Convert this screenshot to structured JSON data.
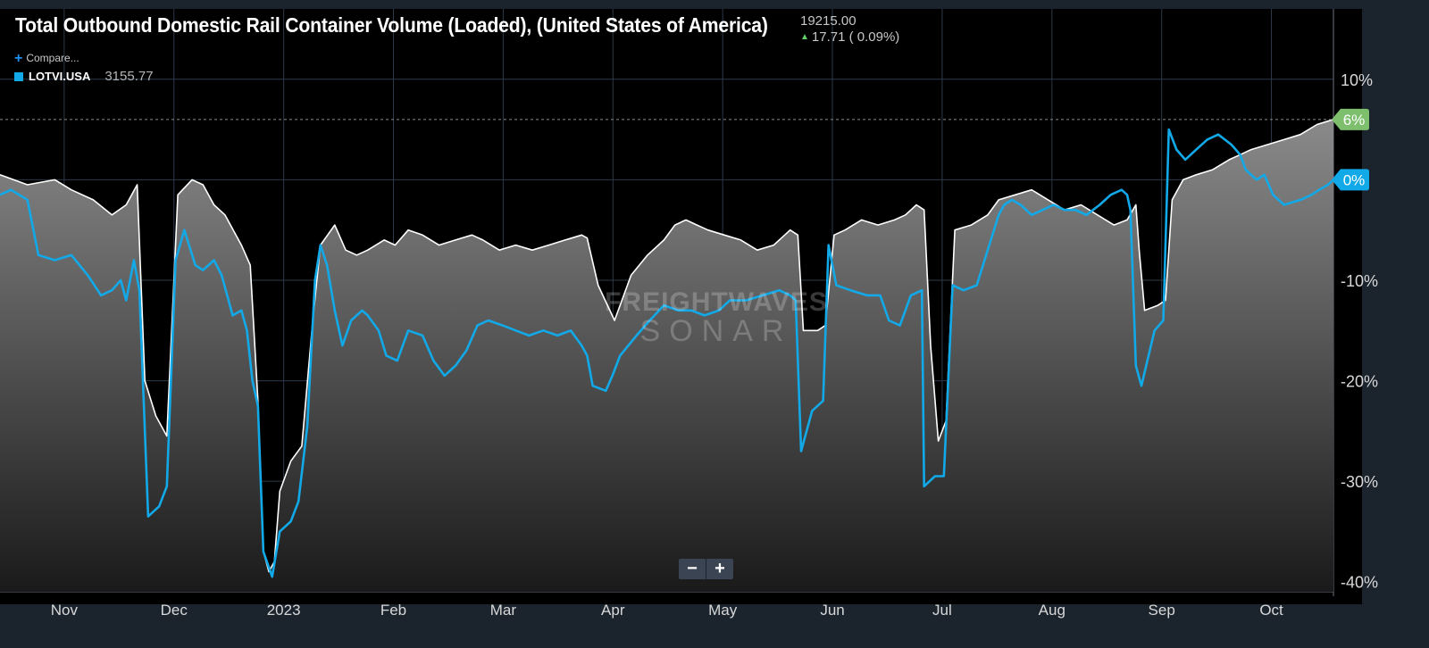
{
  "header": {
    "title": "Total Outbound Domestic Rail Container Volume (Loaded), (United States of America)",
    "last_value": "19215.00",
    "change": "17.71 ( 0.09%)",
    "compare_label": "Compare...",
    "legend_symbol": "LOTVI.USA",
    "legend_value": "3155.77"
  },
  "watermark": {
    "line1": "FREIGHTWAVES",
    "line2": "SONAR"
  },
  "zoom": {
    "minus": "−",
    "plus": "+"
  },
  "colors": {
    "background": "#000000",
    "frame": "#1b232d",
    "primary_series": "#ffffff",
    "compare_series": "#12a9e8",
    "positive_badge": "#7dbf6d",
    "compare_badge": "#12a9e8"
  },
  "chart_data": {
    "type": "line",
    "x_axis": {
      "tick_labels": [
        "Nov",
        "Dec",
        "2023",
        "Feb",
        "Mar",
        "Apr",
        "May",
        "Jun",
        "Jul",
        "Aug",
        "Sep",
        "Oct"
      ],
      "tick_pos": [
        0,
        1,
        2,
        3,
        4,
        5,
        6,
        7,
        8,
        9,
        10,
        11
      ],
      "range": [
        -0.3,
        11.85
      ]
    },
    "y_axis": {
      "unit": "%",
      "position": "right",
      "ticks": [
        10,
        0,
        -10,
        -20,
        -30,
        -40
      ],
      "tick_labels": [
        "10%",
        "-10%",
        "-20%",
        "-30%",
        "-40%"
      ],
      "range": [
        -41,
        17
      ]
    },
    "grid": true,
    "reference_line": 6,
    "series": [
      {
        "label_badge": "6%",
        "style": "line-with-area-fill",
        "color": "#ffffff",
        "points": [
          [
            -0.3,
            0.5
          ],
          [
            -0.05,
            -0.5
          ],
          [
            0.2,
            0.0
          ],
          [
            0.35,
            -1.0
          ],
          [
            0.55,
            -2.0
          ],
          [
            0.72,
            -3.5
          ],
          [
            0.85,
            -2.5
          ],
          [
            0.95,
            -0.5
          ],
          [
            1.02,
            -20.0
          ],
          [
            1.12,
            -23.5
          ],
          [
            1.22,
            -25.5
          ],
          [
            1.32,
            -1.5
          ],
          [
            1.45,
            0.0
          ],
          [
            1.55,
            -0.5
          ],
          [
            1.65,
            -2.5
          ],
          [
            1.75,
            -3.5
          ],
          [
            1.9,
            -6.5
          ],
          [
            1.98,
            -8.5
          ],
          [
            2.05,
            -22.0
          ],
          [
            2.1,
            -37.0
          ],
          [
            2.15,
            -39.0
          ],
          [
            2.2,
            -38.0
          ],
          [
            2.25,
            -31.0
          ],
          [
            2.35,
            -28.0
          ],
          [
            2.45,
            -26.5
          ],
          [
            2.55,
            -14.0
          ],
          [
            2.62,
            -6.5
          ],
          [
            2.75,
            -4.5
          ],
          [
            2.85,
            -7.0
          ],
          [
            2.95,
            -7.5
          ],
          [
            3.05,
            -7.0
          ],
          [
            3.2,
            -6.0
          ],
          [
            3.3,
            -6.5
          ],
          [
            3.42,
            -5.0
          ],
          [
            3.55,
            -5.5
          ],
          [
            3.7,
            -6.5
          ],
          [
            3.85,
            -6.0
          ],
          [
            4.0,
            -5.5
          ],
          [
            4.1,
            -6.0
          ],
          [
            4.25,
            -7.0
          ],
          [
            4.4,
            -6.5
          ],
          [
            4.55,
            -7.0
          ],
          [
            4.7,
            -6.5
          ],
          [
            4.85,
            -6.0
          ],
          [
            5.0,
            -5.5
          ],
          [
            5.05,
            -5.8
          ],
          [
            5.15,
            -10.5
          ],
          [
            5.3,
            -14.0
          ],
          [
            5.45,
            -9.5
          ],
          [
            5.6,
            -7.5
          ],
          [
            5.75,
            -6.0
          ],
          [
            5.85,
            -4.5
          ],
          [
            5.95,
            -4.0
          ],
          [
            6.05,
            -4.5
          ],
          [
            6.15,
            -5.0
          ],
          [
            6.3,
            -5.5
          ],
          [
            6.45,
            -6.0
          ],
          [
            6.6,
            -7.0
          ],
          [
            6.75,
            -6.5
          ],
          [
            6.85,
            -5.5
          ],
          [
            6.9,
            -5.0
          ],
          [
            6.97,
            -5.5
          ],
          [
            7.02,
            -15.0
          ],
          [
            7.15,
            -15.0
          ],
          [
            7.22,
            -14.5
          ],
          [
            7.3,
            -5.5
          ],
          [
            7.4,
            -5.0
          ],
          [
            7.55,
            -4.0
          ],
          [
            7.7,
            -4.5
          ],
          [
            7.85,
            -4.0
          ],
          [
            7.95,
            -3.5
          ],
          [
            8.05,
            -2.5
          ],
          [
            8.12,
            -3.0
          ],
          [
            8.18,
            -16.5
          ],
          [
            8.25,
            -26.0
          ],
          [
            8.32,
            -24.0
          ],
          [
            8.4,
            -5.0
          ],
          [
            8.55,
            -4.5
          ],
          [
            8.7,
            -3.5
          ],
          [
            8.8,
            -2.0
          ],
          [
            8.95,
            -1.5
          ],
          [
            9.1,
            -1.0
          ],
          [
            9.25,
            -2.0
          ],
          [
            9.4,
            -3.0
          ],
          [
            9.55,
            -2.5
          ],
          [
            9.7,
            -3.5
          ],
          [
            9.85,
            -4.5
          ],
          [
            9.97,
            -4.0
          ],
          [
            10.05,
            -2.5
          ],
          [
            10.08,
            -7.0
          ],
          [
            10.13,
            -13.0
          ],
          [
            10.25,
            -12.5
          ],
          [
            10.32,
            -12.0
          ],
          [
            10.38,
            -2.0
          ],
          [
            10.48,
            0.0
          ],
          [
            10.6,
            0.5
          ],
          [
            10.75,
            1.0
          ],
          [
            10.9,
            2.0
          ],
          [
            11.0,
            2.5
          ],
          [
            11.1,
            3.0
          ],
          [
            11.25,
            3.5
          ],
          [
            11.4,
            4.0
          ],
          [
            11.55,
            4.5
          ],
          [
            11.7,
            5.5
          ],
          [
            11.85,
            6.0
          ]
        ]
      },
      {
        "name": "LOTVI.USA",
        "label_badge": "0%",
        "color": "#12a9e8",
        "points": [
          [
            -0.3,
            -1.5
          ],
          [
            -0.2,
            -1.0
          ],
          [
            -0.05,
            -2.0
          ],
          [
            0.05,
            -7.5
          ],
          [
            0.2,
            -8.0
          ],
          [
            0.35,
            -7.5
          ],
          [
            0.5,
            -9.5
          ],
          [
            0.62,
            -11.5
          ],
          [
            0.72,
            -11.0
          ],
          [
            0.8,
            -10.0
          ],
          [
            0.85,
            -12.0
          ],
          [
            0.92,
            -8.0
          ],
          [
            0.97,
            -11.0
          ],
          [
            1.05,
            -33.5
          ],
          [
            1.15,
            -32.5
          ],
          [
            1.22,
            -30.5
          ],
          [
            1.3,
            -8.0
          ],
          [
            1.38,
            -5.0
          ],
          [
            1.48,
            -8.5
          ],
          [
            1.55,
            -9.0
          ],
          [
            1.65,
            -8.0
          ],
          [
            1.72,
            -9.5
          ],
          [
            1.82,
            -13.5
          ],
          [
            1.9,
            -13.0
          ],
          [
            1.95,
            -15.0
          ],
          [
            2.0,
            -20.0
          ],
          [
            2.05,
            -22.5
          ],
          [
            2.1,
            -37.0
          ],
          [
            2.18,
            -39.5
          ],
          [
            2.25,
            -35.0
          ],
          [
            2.35,
            -34.0
          ],
          [
            2.42,
            -32.0
          ],
          [
            2.5,
            -24.5
          ],
          [
            2.57,
            -10.0
          ],
          [
            2.62,
            -6.5
          ],
          [
            2.68,
            -8.5
          ],
          [
            2.75,
            -13.0
          ],
          [
            2.82,
            -16.5
          ],
          [
            2.9,
            -14.0
          ],
          [
            3.0,
            -13.0
          ],
          [
            3.05,
            -13.5
          ],
          [
            3.15,
            -15.0
          ],
          [
            3.22,
            -17.5
          ],
          [
            3.32,
            -18.0
          ],
          [
            3.42,
            -15.0
          ],
          [
            3.55,
            -15.5
          ],
          [
            3.65,
            -18.0
          ],
          [
            3.75,
            -19.5
          ],
          [
            3.85,
            -18.5
          ],
          [
            3.95,
            -17.0
          ],
          [
            4.05,
            -14.5
          ],
          [
            4.15,
            -14.0
          ],
          [
            4.28,
            -14.5
          ],
          [
            4.4,
            -15.0
          ],
          [
            4.52,
            -15.5
          ],
          [
            4.65,
            -15.0
          ],
          [
            4.78,
            -15.5
          ],
          [
            4.9,
            -15.0
          ],
          [
            5.0,
            -16.5
          ],
          [
            5.05,
            -17.5
          ],
          [
            5.1,
            -20.5
          ],
          [
            5.22,
            -21.0
          ],
          [
            5.28,
            -19.5
          ],
          [
            5.35,
            -17.5
          ],
          [
            5.5,
            -15.5
          ],
          [
            5.62,
            -14.0
          ],
          [
            5.75,
            -12.5
          ],
          [
            5.88,
            -13.0
          ],
          [
            6.0,
            -13.0
          ],
          [
            6.12,
            -13.5
          ],
          [
            6.25,
            -13.0
          ],
          [
            6.35,
            -12.0
          ],
          [
            6.5,
            -12.0
          ],
          [
            6.65,
            -11.5
          ],
          [
            6.8,
            -11.0
          ],
          [
            6.9,
            -11.5
          ],
          [
            6.95,
            -12.0
          ],
          [
            7.0,
            -27.0
          ],
          [
            7.1,
            -23.0
          ],
          [
            7.2,
            -22.0
          ],
          [
            7.25,
            -6.5
          ],
          [
            7.32,
            -10.5
          ],
          [
            7.45,
            -11.0
          ],
          [
            7.6,
            -11.5
          ],
          [
            7.72,
            -11.5
          ],
          [
            7.8,
            -14.0
          ],
          [
            7.9,
            -14.5
          ],
          [
            8.0,
            -11.5
          ],
          [
            8.1,
            -11.0
          ],
          [
            8.12,
            -30.5
          ],
          [
            8.22,
            -29.5
          ],
          [
            8.3,
            -29.5
          ],
          [
            8.38,
            -10.5
          ],
          [
            8.48,
            -11.0
          ],
          [
            8.6,
            -10.5
          ],
          [
            8.7,
            -7.0
          ],
          [
            8.8,
            -3.5
          ],
          [
            8.85,
            -2.5
          ],
          [
            8.92,
            -2.0
          ],
          [
            9.0,
            -2.5
          ],
          [
            9.1,
            -3.5
          ],
          [
            9.2,
            -3.0
          ],
          [
            9.3,
            -2.5
          ],
          [
            9.4,
            -3.0
          ],
          [
            9.5,
            -3.0
          ],
          [
            9.6,
            -3.5
          ],
          [
            9.72,
            -2.5
          ],
          [
            9.82,
            -1.5
          ],
          [
            9.92,
            -1.0
          ],
          [
            9.97,
            -1.5
          ],
          [
            10.0,
            -3.0
          ],
          [
            10.05,
            -18.5
          ],
          [
            10.1,
            -20.5
          ],
          [
            10.22,
            -15.0
          ],
          [
            10.3,
            -14.0
          ],
          [
            10.35,
            5.0
          ],
          [
            10.42,
            3.0
          ],
          [
            10.5,
            2.0
          ],
          [
            10.6,
            3.0
          ],
          [
            10.7,
            4.0
          ],
          [
            10.8,
            4.5
          ],
          [
            10.92,
            3.5
          ],
          [
            11.0,
            2.5
          ],
          [
            11.05,
            1.0
          ],
          [
            11.15,
            0.0
          ],
          [
            11.22,
            0.5
          ],
          [
            11.3,
            -1.5
          ],
          [
            11.4,
            -2.5
          ],
          [
            11.55,
            -2.0
          ],
          [
            11.65,
            -1.5
          ],
          [
            11.72,
            -1.0
          ],
          [
            11.8,
            -0.5
          ],
          [
            11.85,
            0.0
          ]
        ]
      }
    ]
  }
}
